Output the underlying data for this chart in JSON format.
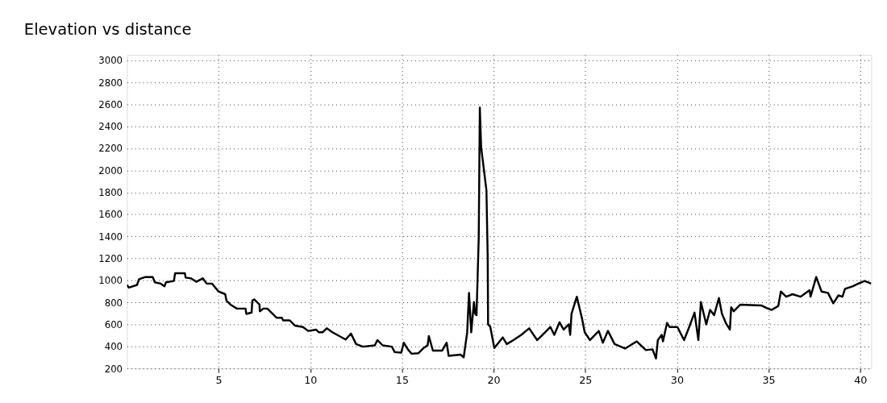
{
  "chart_data": {
    "type": "line",
    "title": "Elevation vs distance",
    "x": [
      0.0,
      0.1,
      0.55,
      0.66,
      0.98,
      1.41,
      1.52,
      1.84,
      2.05,
      2.13,
      2.56,
      2.63,
      3.16,
      3.2,
      3.49,
      3.78,
      4.14,
      4.35,
      4.64,
      5.0,
      5.36,
      5.43,
      5.65,
      6.0,
      6.47,
      6.51,
      6.8,
      6.84,
      6.94,
      7.23,
      7.25,
      7.44,
      7.66,
      8.16,
      8.45,
      8.52,
      8.88,
      9.17,
      9.6,
      9.89,
      10.32,
      10.46,
      10.68,
      10.9,
      11.21,
      11.93,
      12.22,
      12.5,
      12.87,
      13.52,
      13.66,
      13.95,
      14.45,
      14.6,
      14.96,
      15.1,
      15.32,
      15.53,
      15.89,
      16.18,
      16.4,
      16.47,
      16.69,
      17.19,
      17.44,
      17.55,
      18.2,
      18.37,
      18.56,
      18.66,
      18.78,
      18.93,
      19.0,
      19.07,
      19.19,
      19.25,
      19.32,
      19.61,
      19.68,
      19.7,
      19.82,
      20.04,
      20.5,
      20.72,
      21.08,
      21.51,
      21.94,
      22.38,
      22.74,
      23.1,
      23.31,
      23.6,
      23.82,
      24.1,
      24.18,
      24.25,
      24.54,
      24.83,
      24.97,
      25.26,
      25.74,
      25.96,
      26.24,
      26.6,
      27.17,
      27.81,
      28.31,
      28.67,
      28.86,
      28.96,
      29.17,
      29.24,
      29.46,
      29.6,
      30.03,
      30.39,
      30.67,
      30.96,
      31.17,
      31.31,
      31.6,
      31.81,
      32.03,
      32.29,
      32.46,
      32.67,
      32.89,
      32.96,
      33.1,
      33.46,
      34.6,
      34.89,
      35.17,
      35.53,
      35.67,
      35.96,
      36.31,
      36.74,
      37.24,
      37.29,
      37.6,
      37.89,
      38.24,
      38.53,
      38.81,
      39.03,
      39.17,
      39.6,
      39.89,
      40.24,
      40.6
    ],
    "values": [
      960,
      935,
      959,
      1011,
      1030,
      1030,
      983,
      971,
      947,
      983,
      995,
      1066,
      1066,
      1026,
      1019,
      988,
      1019,
      971,
      971,
      899,
      875,
      816,
      780,
      744,
      744,
      696,
      708,
      816,
      828,
      780,
      720,
      744,
      744,
      661,
      661,
      637,
      637,
      589,
      577,
      541,
      553,
      529,
      529,
      565,
      529,
      463,
      517,
      422,
      398,
      410,
      458,
      410,
      398,
      350,
      343,
      434,
      374,
      334,
      338,
      386,
      410,
      494,
      362,
      362,
      434,
      315,
      326,
      301,
      528,
      887,
      528,
      804,
      696,
      684,
      1389,
      2571,
      2213,
      1819,
      1198,
      601,
      579,
      386,
      482,
      422,
      458,
      505,
      565,
      458,
      517,
      577,
      505,
      620,
      553,
      601,
      505,
      696,
      852,
      649,
      529,
      458,
      541,
      434,
      541,
      422,
      381,
      446,
      367,
      374,
      291,
      458,
      505,
      446,
      613,
      577,
      577,
      458,
      577,
      708,
      458,
      804,
      601,
      732,
      684,
      840,
      696,
      613,
      553,
      756,
      720,
      780,
      773,
      749,
      732,
      768,
      899,
      852,
      875,
      852,
      911,
      852,
      1031,
      899,
      887,
      792,
      864,
      852,
      923,
      947,
      971,
      995,
      971
    ],
    "color": "#000000",
    "xlim": [
      0,
      40.6
    ],
    "ylim": [
      200,
      3050
    ],
    "xticks": [
      5,
      10,
      15,
      20,
      25,
      30,
      35,
      40
    ],
    "yticks": [
      200,
      400,
      600,
      800,
      1000,
      1200,
      1400,
      1600,
      1800,
      2000,
      2200,
      2400,
      2600,
      2800,
      3000
    ],
    "grid": true,
    "line_style": "solid",
    "marker": "none"
  }
}
